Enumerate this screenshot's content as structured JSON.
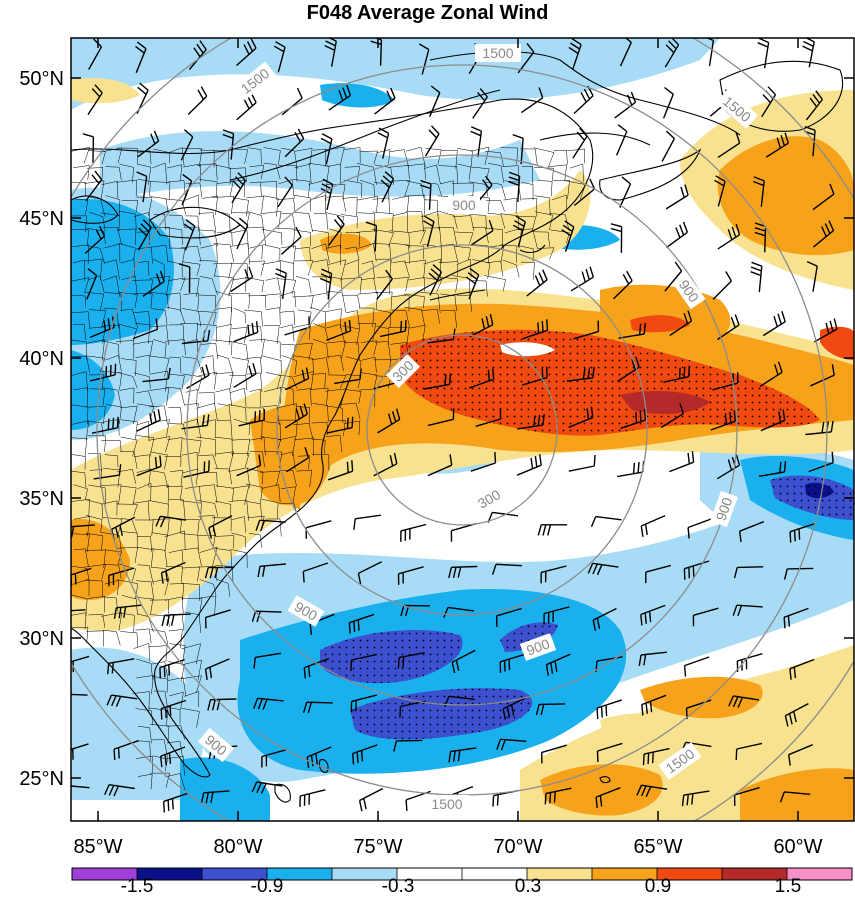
{
  "title": "F048 Average Zonal Wind",
  "lat_labels": [
    "50°N",
    "45°N",
    "40°N",
    "35°N",
    "30°N",
    "25°N"
  ],
  "lon_labels": [
    "85°W",
    "80°W",
    "75°W",
    "70°W",
    "65°W",
    "60°W"
  ],
  "colorbar": {
    "labels": [
      "-1.5",
      "-0.9",
      "-0.3",
      "0.3",
      "0.9",
      "1.5"
    ],
    "colors": [
      "#a040d8",
      "#0a108a",
      "#3c50d0",
      "#1ab0ee",
      "#a8dcf6",
      "#ffffff",
      "#ffffff",
      "#f8e290",
      "#f6a21a",
      "#f04a10",
      "#b42a2a",
      "#f890c8"
    ]
  },
  "contour_labels": [
    "1500",
    "1500",
    "1500",
    "1500",
    "1500",
    "900",
    "900",
    "900",
    "900",
    "900",
    "900",
    "300",
    "300"
  ],
  "field_colors": {
    "strong_negative": "#3c50d0",
    "negative": "#1ab0ee",
    "weak_negative": "#a8dcf6",
    "weak_positive": "#f8e290",
    "positive": "#f6a21a",
    "strong_positive": "#f04a10",
    "very_strong_positive": "#b42a2a"
  }
}
